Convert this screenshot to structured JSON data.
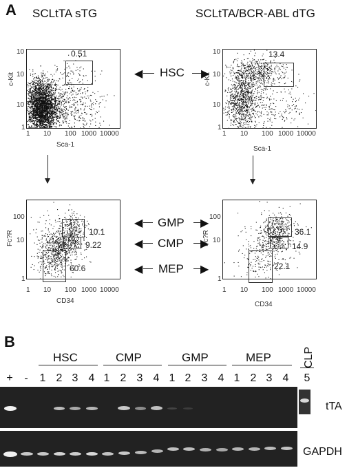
{
  "panel_a": {
    "letter": "A",
    "conditions": [
      {
        "title": "SCLtTA sTG",
        "top_plot": {
          "x_axis": "Sca-1",
          "y_axis": "c-Kit",
          "gate_value": "0.51"
        },
        "bottom_plot": {
          "x_axis": "CD34",
          "y_axis": "Fc?R",
          "gates": [
            "10.1",
            "9.22",
            "60.6"
          ]
        }
      },
      {
        "title": "SCLtTA/BCR-ABL dTG",
        "top_plot": {
          "x_axis": "Sca-1",
          "y_axis": "c-Kit",
          "gate_value": "13.4"
        },
        "bottom_plot": {
          "x_axis": "CD34",
          "y_axis": "Fc?R",
          "gates": [
            "36.1",
            "14.9",
            "22.1"
          ]
        }
      }
    ],
    "axis_ticks": [
      "1",
      "10",
      "100",
      "1000",
      "10000"
    ],
    "y_ticks_top": [
      "10",
      "10",
      "10",
      "1"
    ],
    "y_ticks_bottom": [
      "100",
      "10",
      "1"
    ],
    "populations": {
      "hsc": "HSC",
      "gmp": "GMP",
      "cmp": "CMP",
      "mep": "MEP"
    }
  },
  "panel_b": {
    "letter": "B",
    "groups": [
      "HSC",
      "CMP",
      "GMP",
      "MEP"
    ],
    "clp_label": "CLP",
    "clp_lane": "5",
    "control_lanes": [
      "+",
      "-"
    ],
    "lane_numbers": [
      "1",
      "2",
      "3",
      "4"
    ],
    "gel_labels": {
      "tta": "tTA",
      "gapdh": "GAPDH"
    }
  }
}
